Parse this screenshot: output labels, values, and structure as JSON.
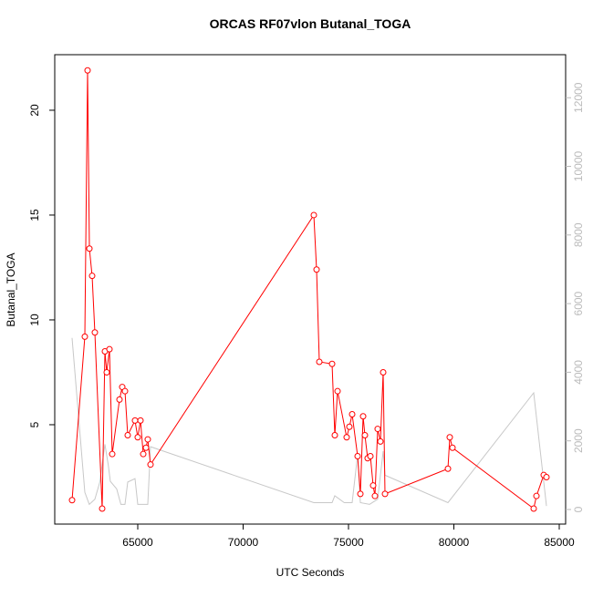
{
  "chart_data": {
    "type": "line",
    "title": "ORCAS RF07vlon Butanal_TOGA",
    "xlabel": "UTC Seconds",
    "ylabel": "Butanal_TOGA",
    "xlim": [
      61061,
      85303
    ],
    "ylim": [
      0.26,
      22.65
    ],
    "y2lim": [
      -425,
      13254
    ],
    "xticks": [
      65000,
      70000,
      75000,
      80000,
      85000
    ],
    "yticks": [
      5,
      10,
      15,
      20
    ],
    "y2ticks": [
      0,
      2000,
      4000,
      6000,
      8000,
      10000,
      12000
    ],
    "y2color": "#bbbbbb",
    "series": [
      {
        "color": "#ff0000",
        "markers": true,
        "x": [
          61883,
          62489,
          62619,
          62706,
          62835,
          62965,
          63312,
          63442,
          63528,
          63658,
          63788,
          64134,
          64264,
          64394,
          64524,
          64870,
          65000,
          65130,
          65260,
          65390,
          65476,
          65606,
          73355,
          73485,
          73615,
          74221,
          74351,
          74481,
          74913,
          75043,
          75173,
          75433,
          75563,
          75693,
          75779,
          75909,
          76039,
          76169,
          76255,
          76385,
          76515,
          76645,
          76732,
          79719,
          79805,
          79935,
          83788,
          83918,
          84264,
          84394
        ],
        "values": [
          1.4,
          9.2,
          21.9,
          13.4,
          12.1,
          9.4,
          1.0,
          8.5,
          7.5,
          8.6,
          3.6,
          6.2,
          6.8,
          6.6,
          4.5,
          5.2,
          4.4,
          5.2,
          3.6,
          3.9,
          4.3,
          3.1,
          15.0,
          12.4,
          8.0,
          7.9,
          4.5,
          6.6,
          4.4,
          4.9,
          5.5,
          3.5,
          1.7,
          5.4,
          4.5,
          3.4,
          3.5,
          2.1,
          1.6,
          4.8,
          4.2,
          7.5,
          1.7,
          2.9,
          4.4,
          3.9,
          1.0,
          1.6,
          2.6,
          2.5
        ]
      },
      {
        "color": "#c8c8c8",
        "axis": "y2",
        "markers": false,
        "x": [
          61883,
          62489,
          62700,
          62965,
          63200,
          63442,
          63600,
          63700,
          64000,
          64200,
          64394,
          64524,
          64870,
          65000,
          65476,
          65606,
          73355,
          74221,
          74351,
          74800,
          75173,
          75433,
          75563,
          76000,
          76385,
          76645,
          76732,
          79719,
          83788,
          84394
        ],
        "values": [
          5000,
          500,
          150,
          300,
          800,
          1900,
          1300,
          820,
          600,
          150,
          150,
          800,
          900,
          150,
          150,
          1830,
          200,
          200,
          400,
          200,
          200,
          1600,
          200,
          150,
          300,
          1700,
          1000,
          200,
          3400,
          100
        ]
      }
    ]
  }
}
